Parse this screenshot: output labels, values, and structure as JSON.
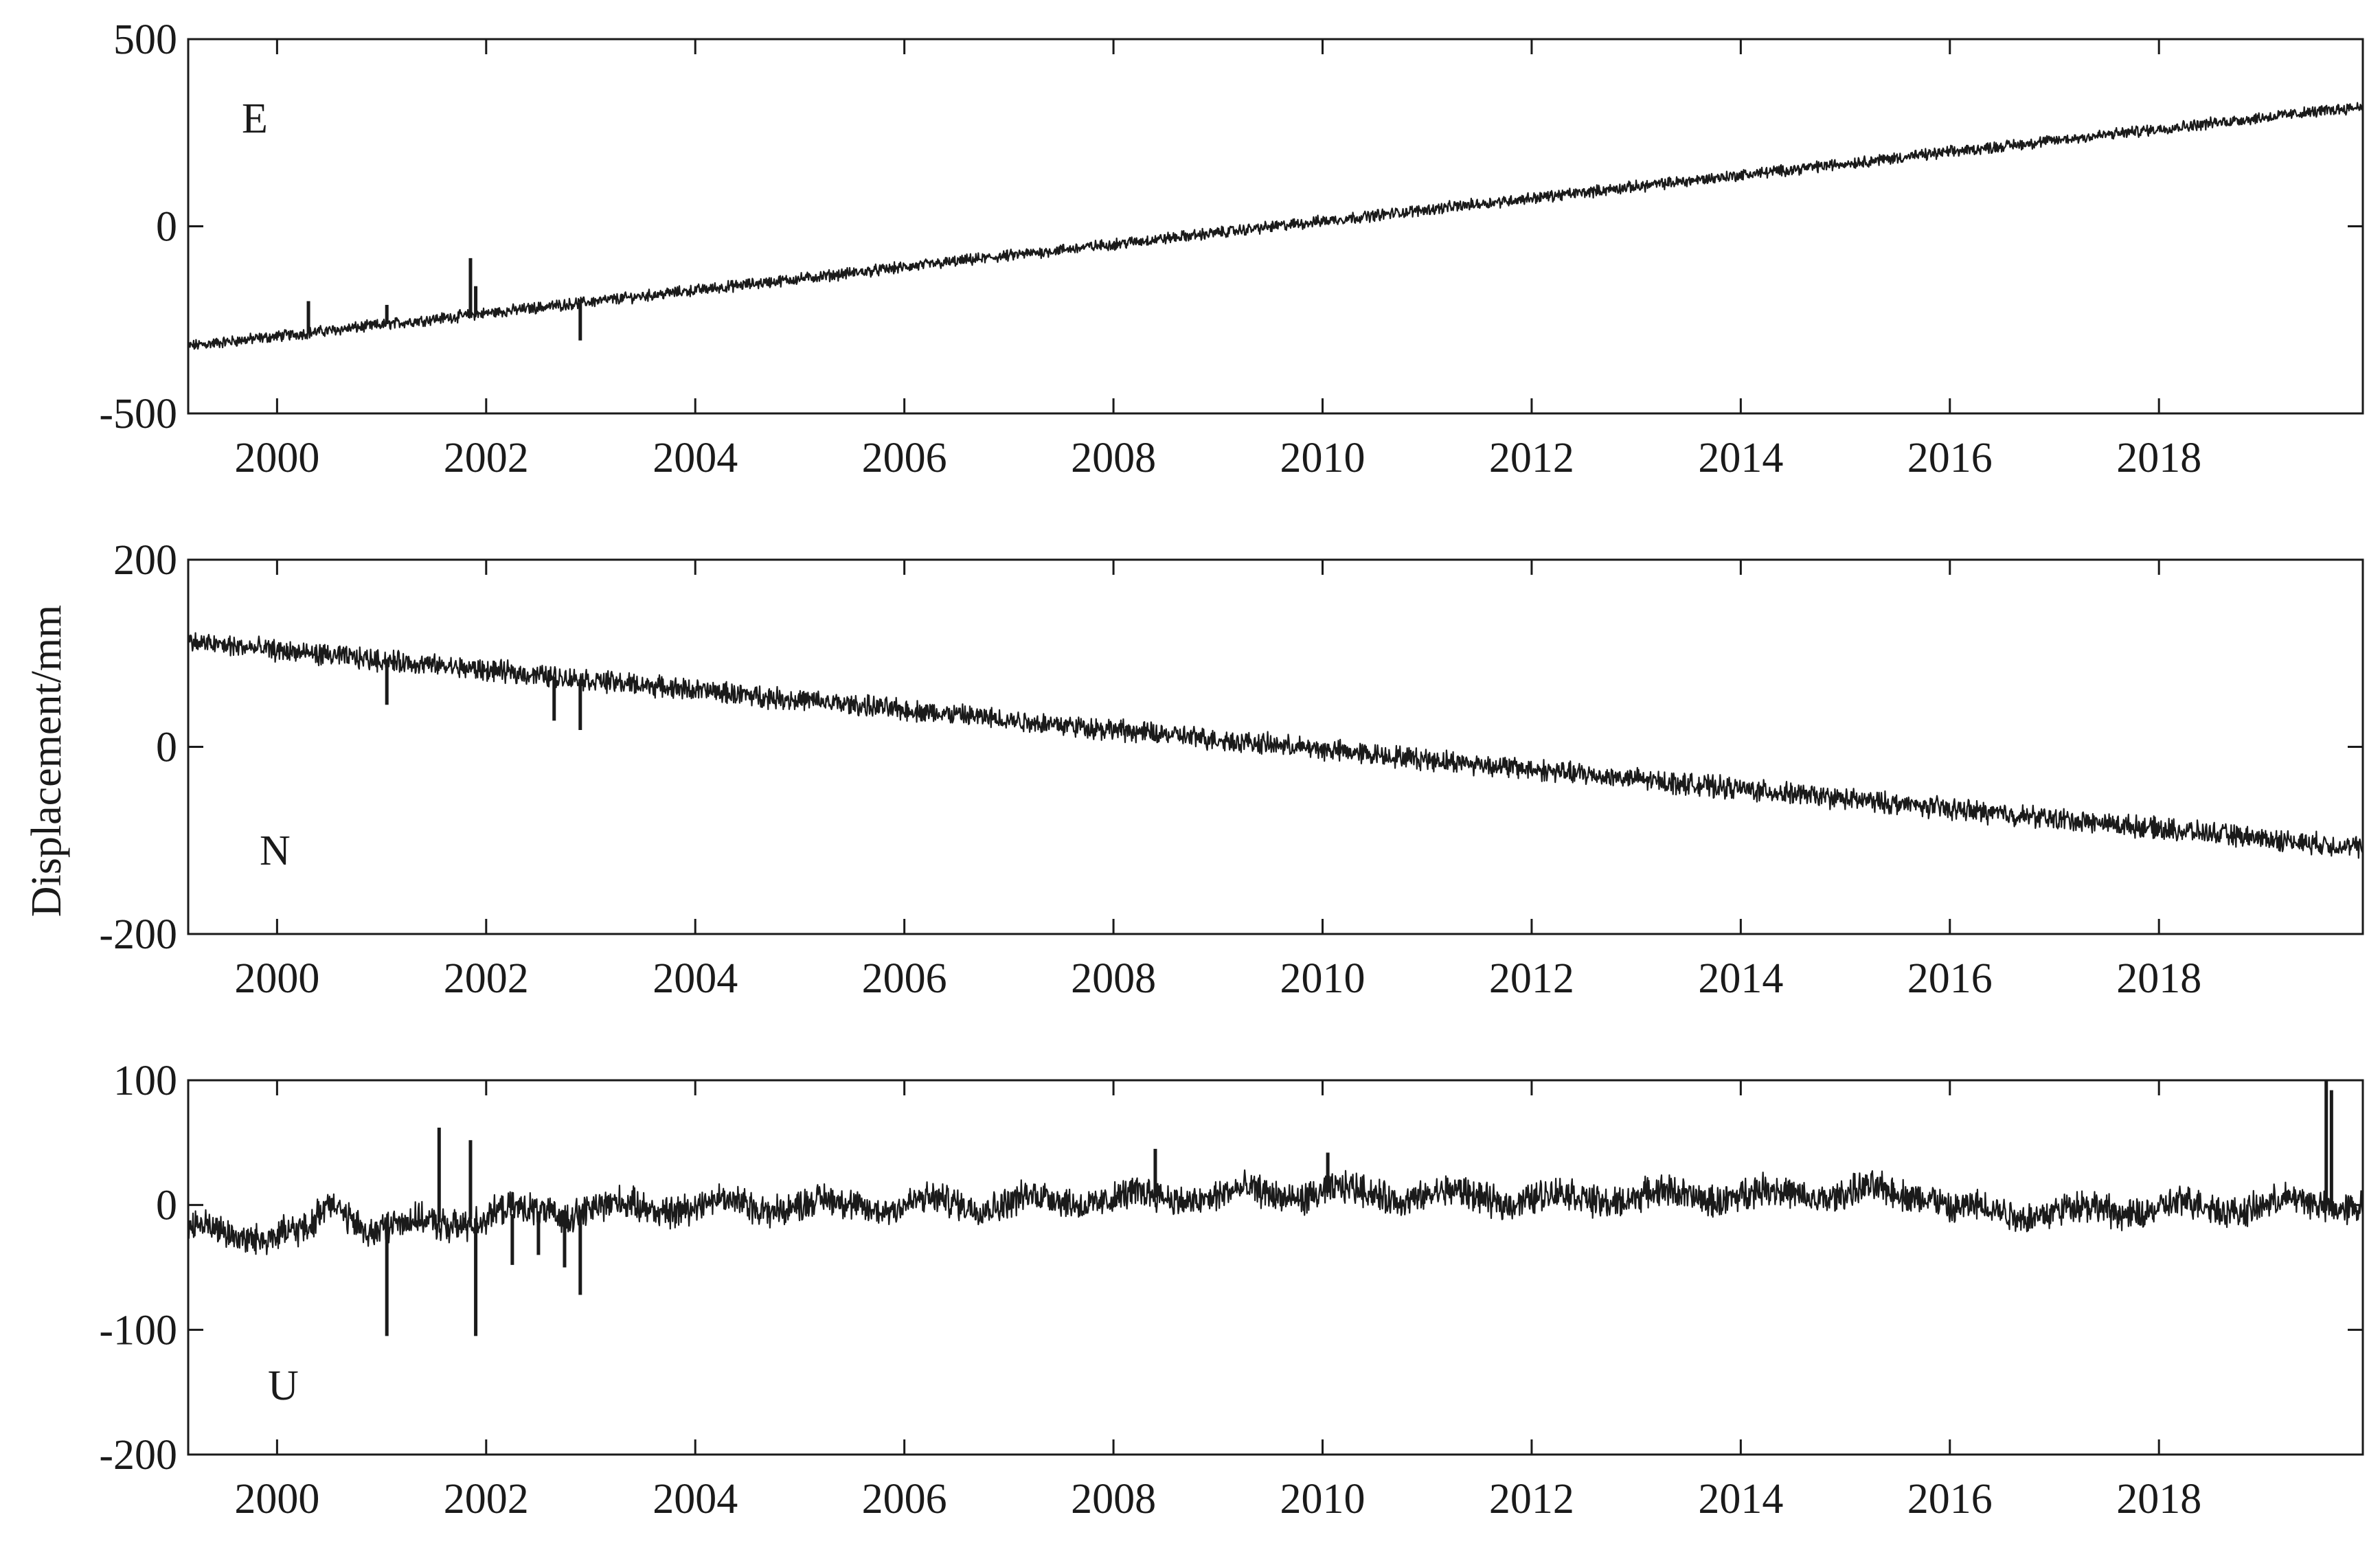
{
  "chart_data": [
    {
      "type": "line",
      "panel_label": "E",
      "ylabel": "Displacement/mm",
      "xlim": [
        1999.15,
        2019.95
      ],
      "ylim": [
        -500,
        500
      ],
      "xticks": [
        2000,
        2002,
        2004,
        2006,
        2008,
        2010,
        2012,
        2014,
        2016,
        2018
      ],
      "xtick_labels": [
        "2000",
        "2002",
        "2004",
        "2006",
        "2008",
        "2010",
        "2012",
        "2014",
        "2016",
        "2018"
      ],
      "yticks": [
        -500,
        0,
        500
      ],
      "ytick_labels": [
        "-500",
        "0",
        "500"
      ],
      "series": [
        {
          "name": "E",
          "trend": {
            "x": [
              1999.15,
              2019.95
            ],
            "y": [
              -320,
              320
            ]
          },
          "noise_amplitude": 12,
          "seasonal": [],
          "spikes": [
            {
              "x": 2000.3,
              "y": -200
            },
            {
              "x": 2001.05,
              "y": -210
            },
            {
              "x": 2001.85,
              "y": -85
            },
            {
              "x": 2001.9,
              "y": -160
            },
            {
              "x": 2002.9,
              "y": -305
            }
          ]
        }
      ]
    },
    {
      "type": "line",
      "panel_label": "N",
      "xlim": [
        1999.15,
        2019.95
      ],
      "ylim": [
        -200,
        200
      ],
      "xticks": [
        2000,
        2002,
        2004,
        2006,
        2008,
        2010,
        2012,
        2014,
        2016,
        2018
      ],
      "xtick_labels": [
        "2000",
        "2002",
        "2004",
        "2006",
        "2008",
        "2010",
        "2012",
        "2014",
        "2016",
        "2018"
      ],
      "yticks": [
        -200,
        0,
        200
      ],
      "ytick_labels": [
        "-200",
        "0",
        "200"
      ],
      "series": [
        {
          "name": "N",
          "trend": {
            "x": [
              1999.15,
              2019.95
            ],
            "y": [
              112,
              -108
            ]
          },
          "noise_amplitude": 9,
          "seasonal": [],
          "spikes": [
            {
              "x": 2001.05,
              "y": 45
            },
            {
              "x": 2002.65,
              "y": 28
            },
            {
              "x": 2002.9,
              "y": 18
            }
          ]
        }
      ]
    },
    {
      "type": "line",
      "panel_label": "U",
      "xlim": [
        1999.15,
        2019.95
      ],
      "ylim": [
        -200,
        100
      ],
      "xticks": [
        2000,
        2002,
        2004,
        2006,
        2008,
        2010,
        2012,
        2014,
        2016,
        2018
      ],
      "xtick_labels": [
        "2000",
        "2002",
        "2004",
        "2006",
        "2008",
        "2010",
        "2012",
        "2014",
        "2016",
        "2018"
      ],
      "yticks": [
        -200,
        -100,
        0,
        100
      ],
      "ytick_labels": [
        "-200",
        "-100",
        "0",
        "100"
      ],
      "series": [
        {
          "name": "U",
          "trend": {
            "x": [
              1999.15,
              2000.3,
              2000.5,
              2000.9,
              2002.5,
              2004.0,
              2006.0,
              2008.0,
              2010.0,
              2012.0,
              2014.0,
              2015.85,
              2016.0,
              2017.1,
              2019.95
            ],
            "y": [
              -20,
              -25,
              5,
              -20,
              -5,
              0,
              0,
              5,
              10,
              5,
              8,
              10,
              -5,
              -5,
              2
            ]
          },
          "noise_amplitude": 10,
          "seasonal": [
            5,
            0.0
          ],
          "spikes": [
            {
              "x": 2001.05,
              "y": -105
            },
            {
              "x": 2001.55,
              "y": 62
            },
            {
              "x": 2001.85,
              "y": 52
            },
            {
              "x": 2001.9,
              "y": -105
            },
            {
              "x": 2002.25,
              "y": -48
            },
            {
              "x": 2002.5,
              "y": -40
            },
            {
              "x": 2002.75,
              "y": -50
            },
            {
              "x": 2002.9,
              "y": -72
            },
            {
              "x": 2008.4,
              "y": 45
            },
            {
              "x": 2010.05,
              "y": 42
            },
            {
              "x": 2019.6,
              "y": 105
            },
            {
              "x": 2019.65,
              "y": 92
            }
          ]
        }
      ]
    }
  ]
}
